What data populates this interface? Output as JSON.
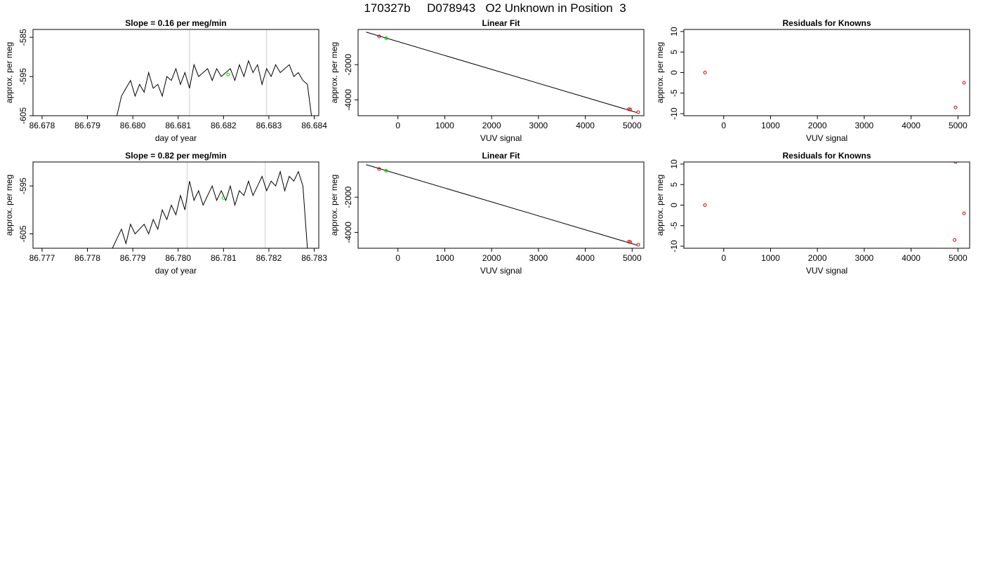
{
  "figure": {
    "title": "170327b     D078943   O2 Unknown in Position  3"
  },
  "chart_data": [
    {
      "id": "ts1",
      "type": "line",
      "title": "Slope =  0.16  per meg/min",
      "xlabel": "day of year",
      "ylabel": "approx. per meg",
      "xlim": [
        86.6778,
        86.6841
      ],
      "ylim": [
        -605,
        -583
      ],
      "xticks": [
        86.678,
        86.679,
        86.68,
        86.681,
        86.682,
        86.683,
        86.684
      ],
      "xtick_labels": [
        "86.678",
        "86.679",
        "86.680",
        "86.681",
        "86.682",
        "86.683",
        "86.684"
      ],
      "yticks": [
        -605,
        -595,
        -585
      ],
      "ytick_labels": [
        "-605",
        "-595",
        "-585"
      ],
      "vlines": [
        86.68125,
        86.68295
      ],
      "vline_color": "#cccccc",
      "line_color": "#000000",
      "marker": {
        "x": 86.6821,
        "y": -594.5,
        "color": "#00cc00"
      },
      "series": [
        {
          "x": [
            86.67965,
            86.67975,
            86.67985,
            86.67995,
            86.68005,
            86.68015,
            86.68025,
            86.68035,
            86.68045,
            86.68055,
            86.68065,
            86.68075,
            86.68085,
            86.68095,
            86.68105,
            86.68115,
            86.68125,
            86.68135,
            86.68145,
            86.68155,
            86.68165,
            86.68175,
            86.68185,
            86.68195,
            86.68205,
            86.68215,
            86.68225,
            86.68235,
            86.68245,
            86.68255,
            86.68265,
            86.68275,
            86.68285,
            86.68295,
            86.68305,
            86.68315,
            86.68325,
            86.68335,
            86.68345,
            86.68355,
            86.68365,
            86.68375,
            86.68385,
            86.68395
          ],
          "y": [
            -605,
            -600,
            -598,
            -596,
            -600,
            -597,
            -599,
            -594,
            -598,
            -597,
            -600,
            -595,
            -596,
            -593,
            -597,
            -594,
            -598,
            -592,
            -595,
            -594,
            -593,
            -596,
            -593,
            -595,
            -594,
            -593,
            -596,
            -592,
            -595,
            -591,
            -594,
            -592,
            -597,
            -593,
            -595,
            -592,
            -594,
            -593,
            -592,
            -595,
            -594,
            -596,
            -597,
            -606
          ]
        }
      ]
    },
    {
      "id": "fit1",
      "type": "scatter",
      "title": "Linear Fit",
      "xlabel": "VUV signal",
      "ylabel": "approx. per meg",
      "xlim": [
        -850,
        5250
      ],
      "ylim": [
        -4900,
        0
      ],
      "xticks": [
        0,
        1000,
        2000,
        3000,
        4000,
        5000
      ],
      "xtick_labels": [
        "0",
        "1000",
        "2000",
        "3000",
        "4000",
        "5000"
      ],
      "yticks": [
        -4000,
        -2000
      ],
      "ytick_labels": [
        "-4000",
        "-2000"
      ],
      "fit_line": {
        "x": [
          -680,
          5100
        ],
        "y": [
          -150,
          -4720
        ]
      },
      "points_known": {
        "x": [
          -400,
          4930,
          4960,
          5130
        ],
        "y": [
          -400,
          -4530,
          -4550,
          -4700
        ],
        "color": "#cc0000"
      },
      "points_unknown": {
        "x": [
          -250
        ],
        "y": [
          -500
        ],
        "color": "#00cc00"
      }
    },
    {
      "id": "res1",
      "type": "scatter",
      "title": "Residuals for Knowns",
      "xlabel": "VUV signal",
      "ylabel": "approx. per meg",
      "xlim": [
        -850,
        5250
      ],
      "ylim": [
        -10.5,
        10.5
      ],
      "xticks": [
        0,
        1000,
        2000,
        3000,
        4000,
        5000
      ],
      "xtick_labels": [
        "0",
        "1000",
        "2000",
        "3000",
        "4000",
        "5000"
      ],
      "yticks": [
        -10,
        -5,
        0,
        5,
        10
      ],
      "ytick_labels": [
        "-10",
        "-5",
        "0",
        "5",
        "10"
      ],
      "points": {
        "x": [
          -400,
          4950,
          5130
        ],
        "y": [
          0,
          -8.5,
          -2.5
        ],
        "color": "#cc0000"
      }
    },
    {
      "id": "ts2",
      "type": "line",
      "title": "Slope =  0.82  per meg/min",
      "xlabel": "day of year",
      "ylabel": "approx. per meg",
      "xlim": [
        86.7768,
        86.7831
      ],
      "ylim": [
        -608,
        -590
      ],
      "xticks": [
        86.777,
        86.778,
        86.779,
        86.78,
        86.781,
        86.782,
        86.783
      ],
      "xtick_labels": [
        "86.777",
        "86.778",
        "86.779",
        "86.780",
        "86.781",
        "86.782",
        "86.783"
      ],
      "yticks": [
        -605,
        -595
      ],
      "ytick_labels": [
        "-605",
        "-595"
      ],
      "vlines": [
        86.7802,
        86.78192
      ],
      "vline_color": "#cccccc",
      "line_color": "#000000",
      "marker": {
        "x": 86.781,
        "y": -597.5,
        "color": "#00cc00"
      },
      "series": [
        {
          "x": [
            86.77855,
            86.77865,
            86.77875,
            86.77885,
            86.77895,
            86.77905,
            86.77915,
            86.77925,
            86.77935,
            86.77945,
            86.77955,
            86.77965,
            86.77975,
            86.77985,
            86.77995,
            86.78005,
            86.78015,
            86.78025,
            86.78035,
            86.78045,
            86.78055,
            86.78065,
            86.78075,
            86.78085,
            86.78095,
            86.78105,
            86.78115,
            86.78125,
            86.78135,
            86.78145,
            86.78155,
            86.78165,
            86.78175,
            86.78185,
            86.78195,
            86.78205,
            86.78215,
            86.78225,
            86.78235,
            86.78245,
            86.78255,
            86.78265,
            86.78275,
            86.78285
          ],
          "y": [
            -608,
            -606,
            -604,
            -607,
            -603,
            -605,
            -604,
            -603,
            -605,
            -602,
            -604,
            -600,
            -602,
            -599,
            -601,
            -597,
            -600,
            -594,
            -598,
            -596,
            -599,
            -597,
            -595,
            -598,
            -596,
            -598,
            -595,
            -599,
            -596,
            -597,
            -594,
            -597,
            -595,
            -593,
            -596,
            -594,
            -595,
            -592,
            -596,
            -593,
            -594,
            -592,
            -595,
            -608
          ]
        }
      ]
    },
    {
      "id": "fit2",
      "type": "scatter",
      "title": "Linear Fit",
      "xlabel": "VUV signal",
      "ylabel": "approx. per meg",
      "xlim": [
        -850,
        5250
      ],
      "ylim": [
        -4900,
        0
      ],
      "xticks": [
        0,
        1000,
        2000,
        3000,
        4000,
        5000
      ],
      "xtick_labels": [
        "0",
        "1000",
        "2000",
        "3000",
        "4000",
        "5000"
      ],
      "yticks": [
        -4000,
        -2000
      ],
      "ytick_labels": [
        "-4000",
        "-2000"
      ],
      "fit_line": {
        "x": [
          -680,
          5100
        ],
        "y": [
          -150,
          -4720
        ]
      },
      "points_known": {
        "x": [
          -400,
          4930,
          4960,
          5130
        ],
        "y": [
          -400,
          -4530,
          -4550,
          -4700
        ],
        "color": "#cc0000"
      },
      "points_unknown": {
        "x": [
          -250
        ],
        "y": [
          -500
        ],
        "color": "#00cc00"
      }
    },
    {
      "id": "res2",
      "type": "scatter",
      "title": "Residuals for Knowns",
      "xlabel": "VUV signal",
      "ylabel": "approx. per meg",
      "xlim": [
        -850,
        5250
      ],
      "ylim": [
        -10.5,
        10.5
      ],
      "xticks": [
        0,
        1000,
        2000,
        3000,
        4000,
        5000
      ],
      "xtick_labels": [
        "0",
        "1000",
        "2000",
        "3000",
        "4000",
        "5000"
      ],
      "yticks": [
        -10,
        -5,
        0,
        5,
        10
      ],
      "ytick_labels": [
        "-10",
        "-5",
        "0",
        "5",
        "10"
      ],
      "points": {
        "x": [
          -400,
          4950,
          5130,
          4930
        ],
        "y": [
          0,
          10.5,
          -2,
          -8.5
        ],
        "color": "#cc0000"
      }
    }
  ]
}
